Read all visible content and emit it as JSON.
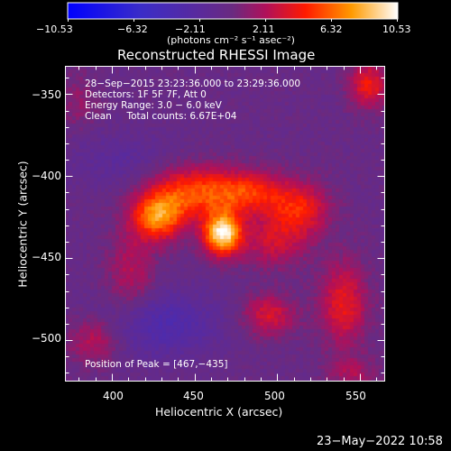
{
  "colorbar": {
    "tick_labels": [
      "−10.53",
      "−6.32",
      "−2.11",
      "2.11",
      "6.32",
      "10.53"
    ],
    "units": "(photons cm⁻² s⁻¹ asec⁻²)"
  },
  "title": "Reconstructed RHESSI Image",
  "info": {
    "time_range": "28−Sep−2015 23:23:36.000 to 23:29:36.000",
    "detectors": "Detectors: 1F 5F 7F, Att 0",
    "energy": "Energy Range: 3.0 − 6.0 keV",
    "method_counts": "Clean     Total counts: 6.67E+04",
    "peak": "Position of Peak = [467,−435]"
  },
  "axes": {
    "xlabel": "Heliocentric X (arcsec)",
    "ylabel": "Heliocentric Y (arcsec)",
    "xticks": [
      "400",
      "450",
      "500",
      "550"
    ],
    "yticks": [
      "−350",
      "−400",
      "−450",
      "−500"
    ]
  },
  "timestamp": "23−May−2022 10:58",
  "colors": {
    "background": "#000000",
    "colormap": [
      "#0000ff",
      "#5020a0",
      "#b01060",
      "#ff2000",
      "#ff9000",
      "#ffffff"
    ]
  },
  "chart_data": {
    "type": "heatmap",
    "title": "Reconstructed RHESSI Image",
    "xlabel": "Heliocentric X (arcsec)",
    "ylabel": "Heliocentric Y (arcsec)",
    "xlim": [
      372,
      565
    ],
    "ylim": [
      -525,
      -333
    ],
    "color_range": [
      -10.53,
      10.53
    ],
    "peak": {
      "x": 467,
      "y": -435,
      "value": 10.53
    },
    "sources": [
      {
        "x": 467,
        "y": -435,
        "peak": 10.5,
        "sx": 8,
        "sy": 9
      },
      {
        "x": 428,
        "y": -425,
        "peak": 7.3,
        "sx": 11,
        "sy": 10
      },
      {
        "x": 448,
        "y": -410,
        "peak": 5.5,
        "sx": 18,
        "sy": 11
      },
      {
        "x": 482,
        "y": -410,
        "peak": 5.0,
        "sx": 16,
        "sy": 9
      },
      {
        "x": 513,
        "y": -420,
        "peak": 4.6,
        "sx": 13,
        "sy": 11
      },
      {
        "x": 498,
        "y": -440,
        "peak": 3.2,
        "sx": 14,
        "sy": 11
      },
      {
        "x": 412,
        "y": -460,
        "peak": 2.7,
        "sx": 10,
        "sy": 18
      },
      {
        "x": 495,
        "y": -485,
        "peak": 3.8,
        "sx": 11,
        "sy": 9
      },
      {
        "x": 540,
        "y": -478,
        "peak": 4.3,
        "sx": 10,
        "sy": 18
      },
      {
        "x": 555,
        "y": -345,
        "peak": 4.6,
        "sx": 8,
        "sy": 10
      },
      {
        "x": 390,
        "y": -500,
        "peak": 3.0,
        "sx": 11,
        "sy": 10
      },
      {
        "x": 380,
        "y": -355,
        "peak": 1.6,
        "sx": 8,
        "sy": 12
      },
      {
        "x": 545,
        "y": -520,
        "peak": 2.2,
        "sx": 10,
        "sy": 7
      },
      {
        "x": 430,
        "y": -490,
        "peak": -3.0,
        "sx": 24,
        "sy": 14
      },
      {
        "x": 405,
        "y": -390,
        "peak": -1.4,
        "sx": 22,
        "sy": 12
      }
    ],
    "background_level": -0.4
  }
}
